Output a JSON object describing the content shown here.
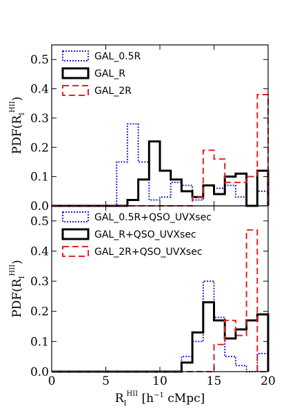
{
  "chart_data": [
    {
      "type": "histogram-step",
      "panel": "top",
      "ylabel": {
        "main": "PDF(R",
        "sub": "I",
        "sup": "HII",
        "close": ")"
      },
      "ylim": [
        0,
        0.55
      ],
      "yticks": [
        0.0,
        0.1,
        0.2,
        0.3,
        0.4,
        0.5
      ],
      "ytick_labels": [
        "0.0",
        "0.1",
        "0.2",
        "0.3",
        "0.4",
        "0.5"
      ],
      "xlim": [
        0,
        20
      ],
      "legend_position": "top-left",
      "series": [
        {
          "name": "GAL_0.5R",
          "color": "#1f1fdd",
          "style": "dotted",
          "edges": [
            0,
            6,
            7,
            8,
            9,
            10,
            11,
            12,
            13,
            14,
            15,
            16,
            17,
            18,
            19,
            20
          ],
          "values": [
            0,
            0.15,
            0.28,
            0.15,
            0.02,
            0.03,
            0.08,
            0.07,
            0.02,
            0.07,
            0.06,
            0.07,
            0.03,
            0,
            0.05
          ]
        },
        {
          "name": "GAL_R",
          "color": "#000000",
          "style": "solid",
          "edges": [
            0,
            7,
            8,
            9,
            10,
            11,
            12,
            13,
            14,
            15,
            16,
            17,
            18,
            19,
            20
          ],
          "values": [
            0,
            0.02,
            0.09,
            0.22,
            0.12,
            0.09,
            0.05,
            0.03,
            0.07,
            0.04,
            0.1,
            0.11,
            0,
            0.12
          ]
        },
        {
          "name": "GAL_2R",
          "color": "#e02020",
          "style": "dashed",
          "edges": [
            0,
            13,
            14,
            15,
            16,
            17,
            18,
            19,
            20
          ],
          "values": [
            0,
            0.03,
            0.19,
            0.16,
            0.08,
            0.08,
            0.1,
            0.38
          ]
        }
      ]
    },
    {
      "type": "histogram-step",
      "panel": "bottom",
      "ylabel": {
        "main": "PDF(R",
        "sub": "I",
        "sup": "HII",
        "close": ")"
      },
      "xlabel": {
        "main": "R",
        "sub": "I",
        "sup": "HII",
        "units_pre": "  [h",
        "units_sup": "−1",
        "units_post": "cMpc]"
      },
      "ylim": [
        0,
        0.55
      ],
      "yticks": [
        0.0,
        0.1,
        0.2,
        0.3,
        0.4,
        0.5
      ],
      "ytick_labels": [
        "0.0",
        "0.1",
        "0.2",
        "0.3",
        "0.4",
        "0.5"
      ],
      "xlim": [
        0,
        20
      ],
      "xticks": [
        0,
        5,
        10,
        15,
        20
      ],
      "xtick_labels": [
        "0",
        "5",
        "10",
        "15",
        "20"
      ],
      "legend_position": "top-left",
      "series": [
        {
          "name": "GAL_0.5R+QSO_UVXsec",
          "color": "#1f1fdd",
          "style": "dotted",
          "edges": [
            0,
            12,
            13,
            14,
            15,
            16,
            17,
            18,
            19,
            20
          ],
          "values": [
            0,
            0.05,
            0.1,
            0.3,
            0.18,
            0.05,
            0.02,
            0,
            0.06
          ]
        },
        {
          "name": "GAL_R+QSO_UVXsec",
          "color": "#000000",
          "style": "solid",
          "edges": [
            0,
            12,
            13,
            14,
            15,
            16,
            17,
            18,
            19,
            20
          ],
          "values": [
            0,
            0.03,
            0.13,
            0.23,
            0.17,
            0.11,
            0.14,
            0.17,
            0.19
          ]
        },
        {
          "name": "GAL_2R+QSO_UVXsec",
          "color": "#e02020",
          "style": "dashed",
          "edges": [
            0,
            15,
            16,
            17,
            18,
            19,
            20
          ],
          "values": [
            0,
            0.09,
            0.17,
            0.12,
            0.47,
            0
          ]
        }
      ]
    }
  ]
}
